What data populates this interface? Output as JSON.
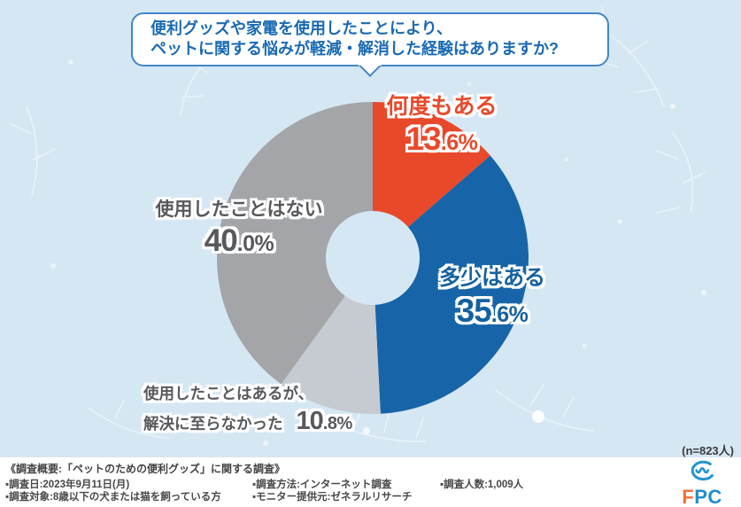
{
  "title": {
    "line1": "便利グッズや家電を使用したことにより、",
    "line2": "ペットに関する悩みが軽減・解消した経験はありますか?"
  },
  "sample_note": "(n=823人)",
  "chart_data": {
    "type": "pie",
    "subtype": "donut",
    "title": "便利グッズや家電を使用したことにより、ペットに関する悩みが軽減・解消した経験はありますか?",
    "categories": [
      "何度もある",
      "多少はある",
      "使用したことはあるが、解決に至らなかった",
      "使用したことはない"
    ],
    "values": [
      13.6,
      35.6,
      10.8,
      40.0
    ],
    "unit": "%",
    "n": 823,
    "start_angle_deg": 0,
    "direction": "clockwise",
    "colors": [
      "#e8492b",
      "#1765a8",
      "#c6cbd1",
      "#a3a5a8"
    ],
    "legend_position": "on-chart",
    "labels": [
      {
        "name": "何度もある",
        "int": "13",
        "frac": ".6%",
        "color": "#e8492b"
      },
      {
        "name": "多少はある",
        "int": "35",
        "frac": ".6%",
        "color": "#15619f"
      },
      {
        "line1": "使用したことはあるが、",
        "line2": "解決に至らなかった",
        "int": "10",
        "frac": ".8%",
        "color": "#58595c"
      },
      {
        "name": "使用したことはない",
        "int": "40",
        "frac": ".0%",
        "color": "#58595c"
      }
    ]
  },
  "footer": {
    "heading": "《調査概要:「ペットのための便利グッズ」に関する調査》",
    "items": [
      "▪調査日:2023年9月11日(月)",
      "▪調査対象:8歳以下の犬または猫を飼っている方",
      "▪調査方法:インターネット調査",
      "▪モニター提供元:ゼネラルリサーチ",
      "▪調査人数:1,009人"
    ],
    "logo": {
      "icon": "fpc-swirl-icon",
      "icon_color": "#2694d3",
      "letters": [
        {
          "ch": "F",
          "color": "#f0713a"
        },
        {
          "ch": "P",
          "color": "#1f8ecd"
        },
        {
          "ch": "C",
          "color": "#1f8ecd"
        }
      ]
    }
  }
}
